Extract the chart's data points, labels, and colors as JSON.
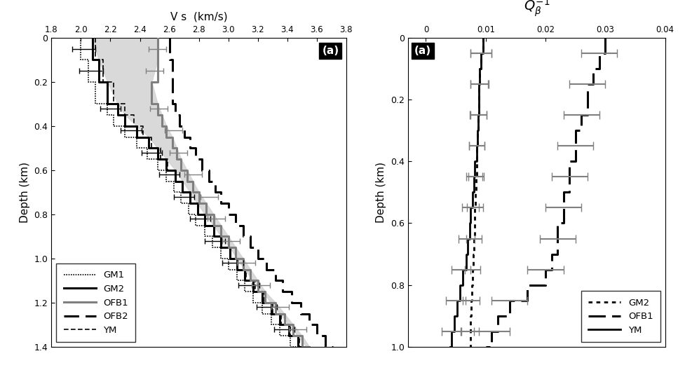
{
  "left_panel": {
    "title": "V s  (km/s)",
    "ylabel": "Depth (km)",
    "xlim": [
      1.8,
      3.8
    ],
    "ylim": [
      1.4,
      0.0
    ],
    "xticks": [
      1.8,
      2.0,
      2.2,
      2.4,
      2.6,
      2.8,
      3.0,
      3.2,
      3.4,
      3.6,
      3.8
    ],
    "yticks": [
      0.0,
      0.2,
      0.4,
      0.6,
      0.8,
      1.0,
      1.2,
      1.4
    ],
    "label": "(a)",
    "GM1_depths": [
      0.0,
      0.1,
      0.2,
      0.3,
      0.35,
      0.4,
      0.45,
      0.5,
      0.55,
      0.6,
      0.65,
      0.7,
      0.75,
      0.8,
      0.85,
      0.9,
      0.95,
      1.0,
      1.05,
      1.1,
      1.15,
      1.2,
      1.25,
      1.3,
      1.35,
      1.4
    ],
    "GM1_vel": [
      2.0,
      2.05,
      2.1,
      2.18,
      2.22,
      2.3,
      2.38,
      2.45,
      2.52,
      2.58,
      2.63,
      2.68,
      2.73,
      2.78,
      2.84,
      2.89,
      2.95,
      3.0,
      3.06,
      3.11,
      3.17,
      3.23,
      3.29,
      3.35,
      3.42,
      3.48
    ],
    "GM2_depths": [
      0.0,
      0.1,
      0.2,
      0.3,
      0.35,
      0.4,
      0.45,
      0.5,
      0.55,
      0.6,
      0.65,
      0.7,
      0.75,
      0.8,
      0.85,
      0.9,
      0.95,
      1.0,
      1.05,
      1.1,
      1.15,
      1.2,
      1.25,
      1.3,
      1.35,
      1.4
    ],
    "GM2_vel": [
      2.08,
      2.12,
      2.18,
      2.25,
      2.3,
      2.38,
      2.46,
      2.52,
      2.58,
      2.64,
      2.69,
      2.74,
      2.79,
      2.84,
      2.9,
      2.95,
      3.01,
      3.06,
      3.11,
      3.17,
      3.23,
      3.29,
      3.35,
      3.41,
      3.47,
      3.53
    ],
    "OFB1_depths": [
      0.0,
      0.1,
      0.2,
      0.3,
      0.35,
      0.4,
      0.45,
      0.5,
      0.55,
      0.6,
      0.65,
      0.7,
      0.75,
      0.8,
      0.85,
      0.9,
      0.95,
      1.0,
      1.05,
      1.1,
      1.15,
      1.2,
      1.25,
      1.3,
      1.35,
      1.4
    ],
    "OFB1_vel": [
      2.52,
      2.52,
      2.48,
      2.52,
      2.55,
      2.58,
      2.62,
      2.65,
      2.68,
      2.72,
      2.76,
      2.8,
      2.85,
      2.9,
      2.95,
      3.0,
      3.05,
      3.1,
      3.15,
      3.2,
      3.25,
      3.32,
      3.38,
      3.44,
      3.5,
      3.55
    ],
    "OFB2_depths": [
      0.0,
      0.1,
      0.2,
      0.3,
      0.35,
      0.4,
      0.45,
      0.5,
      0.55,
      0.6,
      0.65,
      0.7,
      0.75,
      0.8,
      0.85,
      0.9,
      0.95,
      1.0,
      1.05,
      1.1,
      1.15,
      1.2,
      1.25,
      1.3,
      1.35,
      1.4
    ],
    "OFB2_vel": [
      2.6,
      2.62,
      2.62,
      2.64,
      2.67,
      2.7,
      2.74,
      2.78,
      2.82,
      2.87,
      2.91,
      2.95,
      3.0,
      3.05,
      3.1,
      3.15,
      3.2,
      3.26,
      3.32,
      3.37,
      3.43,
      3.49,
      3.55,
      3.6,
      3.66,
      3.71
    ],
    "YM_depths": [
      0.0,
      0.1,
      0.2,
      0.3,
      0.35,
      0.4,
      0.45,
      0.5,
      0.55,
      0.6,
      0.65,
      0.7,
      0.75,
      0.8,
      0.85,
      0.9,
      0.95,
      1.0,
      1.05,
      1.1,
      1.15,
      1.2,
      1.25,
      1.3,
      1.35,
      1.4
    ],
    "YM_vel": [
      2.1,
      2.15,
      2.22,
      2.3,
      2.36,
      2.42,
      2.48,
      2.54,
      2.59,
      2.64,
      2.69,
      2.74,
      2.79,
      2.84,
      2.9,
      2.95,
      3.01,
      3.06,
      3.12,
      3.18,
      3.24,
      3.3,
      3.36,
      3.42,
      3.48,
      3.53
    ],
    "eb_GM1_depths": [
      0.05,
      0.15,
      0.32,
      0.42,
      0.52,
      0.62,
      0.72,
      0.82,
      0.92,
      1.02,
      1.12,
      1.22,
      1.32
    ],
    "eb_GM1_vel": [
      2.02,
      2.07,
      2.2,
      2.34,
      2.48,
      2.6,
      2.7,
      2.81,
      2.91,
      3.03,
      3.14,
      3.26,
      3.38
    ],
    "eb_GM1_xerr": [
      0.08,
      0.08,
      0.07,
      0.07,
      0.07,
      0.07,
      0.07,
      0.07,
      0.07,
      0.07,
      0.07,
      0.07,
      0.07
    ],
    "eb_OFB1_depths": [
      0.05,
      0.15,
      0.32,
      0.42,
      0.52,
      0.62,
      0.72,
      0.82,
      0.92,
      1.02,
      1.12,
      1.22,
      1.32
    ],
    "eb_OFB1_vel": [
      2.52,
      2.5,
      2.53,
      2.63,
      2.66,
      2.76,
      2.87,
      2.92,
      3.02,
      3.12,
      3.22,
      3.35,
      3.47
    ],
    "eb_OFB1_xerr": [
      0.06,
      0.06,
      0.06,
      0.06,
      0.06,
      0.06,
      0.06,
      0.06,
      0.06,
      0.06,
      0.06,
      0.06,
      0.06
    ]
  },
  "right_panel": {
    "title": "$Q_{\\beta}^{-1}$",
    "ylabel": "Depth (km)",
    "xlim": [
      -0.003,
      0.04
    ],
    "ylim": [
      1.0,
      0.0
    ],
    "xticks": [
      0.0,
      0.01,
      0.02,
      0.03,
      0.04
    ],
    "xtick_labels": [
      "0",
      "0.01",
      "0.02",
      "0.03",
      "0.04"
    ],
    "yticks": [
      0.0,
      0.2,
      0.4,
      0.6,
      0.8,
      1.0
    ],
    "label": "(a)",
    "GM2_depths": [
      0.0,
      0.05,
      0.1,
      0.15,
      0.2,
      0.25,
      0.3,
      0.35,
      0.4,
      0.45,
      0.5,
      0.55,
      0.6,
      0.65,
      0.7,
      0.75,
      0.8,
      0.85,
      0.9,
      0.95,
      1.0
    ],
    "GM2_q": [
      0.0095,
      0.0092,
      0.009,
      0.0089,
      0.0088,
      0.0087,
      0.0086,
      0.0085,
      0.0085,
      0.0084,
      0.0083,
      0.0082,
      0.0081,
      0.008,
      0.0079,
      0.0078,
      0.0077,
      0.0076,
      0.0075,
      0.0074,
      0.0073
    ],
    "OFB1_depths": [
      0.0,
      0.05,
      0.1,
      0.15,
      0.2,
      0.25,
      0.3,
      0.35,
      0.4,
      0.45,
      0.5,
      0.55,
      0.6,
      0.65,
      0.7,
      0.75,
      0.8,
      0.85,
      0.9,
      0.95,
      1.0
    ],
    "OFB1_q": [
      0.03,
      0.029,
      0.028,
      0.027,
      0.027,
      0.026,
      0.025,
      0.025,
      0.024,
      0.024,
      0.023,
      0.023,
      0.022,
      0.022,
      0.021,
      0.02,
      0.017,
      0.014,
      0.012,
      0.011,
      0.01
    ],
    "YM_depths": [
      0.0,
      0.05,
      0.1,
      0.15,
      0.2,
      0.25,
      0.3,
      0.35,
      0.4,
      0.45,
      0.5,
      0.55,
      0.6,
      0.65,
      0.7,
      0.75,
      0.8,
      0.85,
      0.9,
      0.95,
      1.0
    ],
    "YM_q": [
      0.0095,
      0.0092,
      0.009,
      0.0089,
      0.0088,
      0.0087,
      0.0086,
      0.0085,
      0.0082,
      0.008,
      0.0078,
      0.0075,
      0.0073,
      0.007,
      0.0067,
      0.0062,
      0.0057,
      0.0052,
      0.0047,
      0.0043,
      0.004
    ],
    "eb_GM2_depths": [
      0.05,
      0.15,
      0.25,
      0.35,
      0.45,
      0.55,
      0.65,
      0.75,
      0.85,
      0.95
    ],
    "eb_GM2_q": [
      0.0092,
      0.009,
      0.0088,
      0.0085,
      0.0084,
      0.0082,
      0.008,
      0.0078,
      0.0076,
      0.0074
    ],
    "eb_GM2_xerr": [
      0.0018,
      0.0015,
      0.0014,
      0.0013,
      0.0013,
      0.0013,
      0.0013,
      0.0013,
      0.0014,
      0.0015
    ],
    "eb_OFB1_depths": [
      0.05,
      0.15,
      0.25,
      0.35,
      0.45,
      0.55,
      0.65,
      0.75,
      0.85,
      0.95
    ],
    "eb_OFB1_q": [
      0.029,
      0.027,
      0.026,
      0.025,
      0.024,
      0.023,
      0.022,
      0.02,
      0.014,
      0.011
    ],
    "eb_OFB1_xerr": [
      0.003,
      0.003,
      0.003,
      0.003,
      0.003,
      0.003,
      0.003,
      0.003,
      0.003,
      0.003
    ],
    "eb_YM_depths": [
      0.05,
      0.15,
      0.25,
      0.35,
      0.45,
      0.55,
      0.65,
      0.75,
      0.85,
      0.95
    ],
    "eb_YM_q": [
      0.0092,
      0.0089,
      0.0087,
      0.0085,
      0.0081,
      0.0074,
      0.0068,
      0.0059,
      0.005,
      0.0042
    ],
    "eb_YM_xerr": [
      0.0018,
      0.0015,
      0.0014,
      0.0013,
      0.0013,
      0.0014,
      0.0014,
      0.0016,
      0.0016,
      0.0016
    ]
  }
}
